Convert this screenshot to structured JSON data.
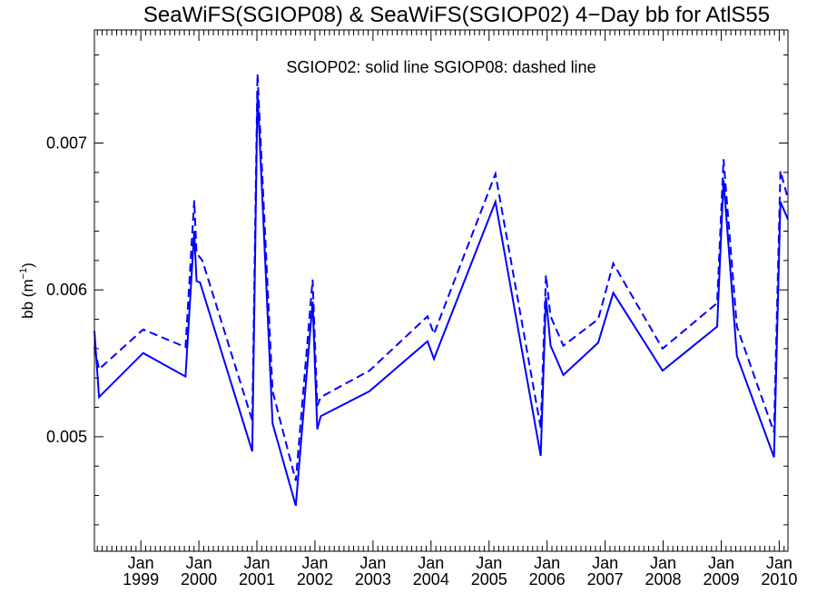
{
  "chart_data": {
    "type": "line",
    "title": "SeaWiFS(SGIOP08) & SeaWiFS(SGIOP02) 4−Day bb for AtlS55",
    "annotation": "SGIOP02: solid line   SGIOP08: dashed line",
    "ylabel_main": "bb (m",
    "ylabel_sup": "−1",
    "ylabel_close": ")",
    "xlabel": "",
    "xlim": [
      1998.2,
      2010.15
    ],
    "ylim": [
      0.00422,
      0.00777
    ],
    "y_ticks": [
      0.005,
      0.006,
      0.007
    ],
    "y_tick_labels": [
      "0.005",
      "0.006",
      "0.007"
    ],
    "x_ticks": [
      {
        "value": 1999,
        "month": "Jan",
        "year": "1999"
      },
      {
        "value": 2000,
        "month": "Jan",
        "year": "2000"
      },
      {
        "value": 2001,
        "month": "Jan",
        "year": "2001"
      },
      {
        "value": 2002,
        "month": "Jan",
        "year": "2002"
      },
      {
        "value": 2003,
        "month": "Jan",
        "year": "2003"
      },
      {
        "value": 2004,
        "month": "Jan",
        "year": "2004"
      },
      {
        "value": 2005,
        "month": "Jan",
        "year": "2005"
      },
      {
        "value": 2006,
        "month": "Jan",
        "year": "2006"
      },
      {
        "value": 2007,
        "month": "Jan",
        "year": "2007"
      },
      {
        "value": 2008,
        "month": "Jan",
        "year": "2008"
      },
      {
        "value": 2009,
        "month": "Jan",
        "year": "2009"
      },
      {
        "value": 2010,
        "month": "Jan",
        "year": "2010"
      }
    ],
    "series": [
      {
        "style": "solid",
        "color": "#0000ff",
        "points": [
          [
            1998.2,
            0.00572
          ],
          [
            1998.28,
            0.00527
          ],
          [
            1999.04,
            0.00557
          ],
          [
            1999.77,
            0.00541
          ],
          [
            1999.92,
            0.0064
          ],
          [
            1999.96,
            0.00606
          ],
          [
            2000.02,
            0.00605
          ],
          [
            2000.92,
            0.0049
          ],
          [
            2001.01,
            0.00735
          ],
          [
            2001.27,
            0.00509
          ],
          [
            2001.67,
            0.00453
          ],
          [
            2001.96,
            0.00592
          ],
          [
            2002.04,
            0.00505
          ],
          [
            2002.1,
            0.00514
          ],
          [
            2002.94,
            0.00531
          ],
          [
            2003.94,
            0.00565
          ],
          [
            2004.05,
            0.00553
          ],
          [
            2005.11,
            0.0066
          ],
          [
            2005.89,
            0.00487
          ],
          [
            2005.98,
            0.00595
          ],
          [
            2006.06,
            0.00562
          ],
          [
            2006.28,
            0.00542
          ],
          [
            2006.88,
            0.00564
          ],
          [
            2007.14,
            0.00598
          ],
          [
            2007.99,
            0.00545
          ],
          [
            2008.93,
            0.00575
          ],
          [
            2009.04,
            0.00675
          ],
          [
            2009.27,
            0.00555
          ],
          [
            2009.91,
            0.00486
          ],
          [
            2010.02,
            0.0066
          ],
          [
            2010.15,
            0.00648
          ]
        ]
      },
      {
        "style": "dashed",
        "color": "#0000ff",
        "points": [
          [
            1998.2,
            0.00561
          ],
          [
            1998.28,
            0.00546
          ],
          [
            1999.04,
            0.00573
          ],
          [
            1999.77,
            0.00561
          ],
          [
            1999.92,
            0.00661
          ],
          [
            1999.96,
            0.00625
          ],
          [
            2000.06,
            0.0062
          ],
          [
            2000.92,
            0.00511
          ],
          [
            2001.01,
            0.00747
          ],
          [
            2001.27,
            0.00531
          ],
          [
            2001.67,
            0.0047
          ],
          [
            2001.96,
            0.00607
          ],
          [
            2002.04,
            0.00521
          ],
          [
            2002.1,
            0.00527
          ],
          [
            2002.94,
            0.00545
          ],
          [
            2003.94,
            0.00582
          ],
          [
            2004.05,
            0.0057
          ],
          [
            2005.11,
            0.00679
          ],
          [
            2005.89,
            0.00506
          ],
          [
            2005.98,
            0.0061
          ],
          [
            2006.06,
            0.00582
          ],
          [
            2006.28,
            0.00562
          ],
          [
            2006.88,
            0.0058
          ],
          [
            2007.14,
            0.00618
          ],
          [
            2007.99,
            0.0056
          ],
          [
            2008.93,
            0.00591
          ],
          [
            2009.04,
            0.00689
          ],
          [
            2009.27,
            0.00575
          ],
          [
            2009.91,
            0.00503
          ],
          [
            2010.02,
            0.00681
          ],
          [
            2010.15,
            0.00662
          ]
        ]
      }
    ],
    "grid": false,
    "legend": "none"
  }
}
